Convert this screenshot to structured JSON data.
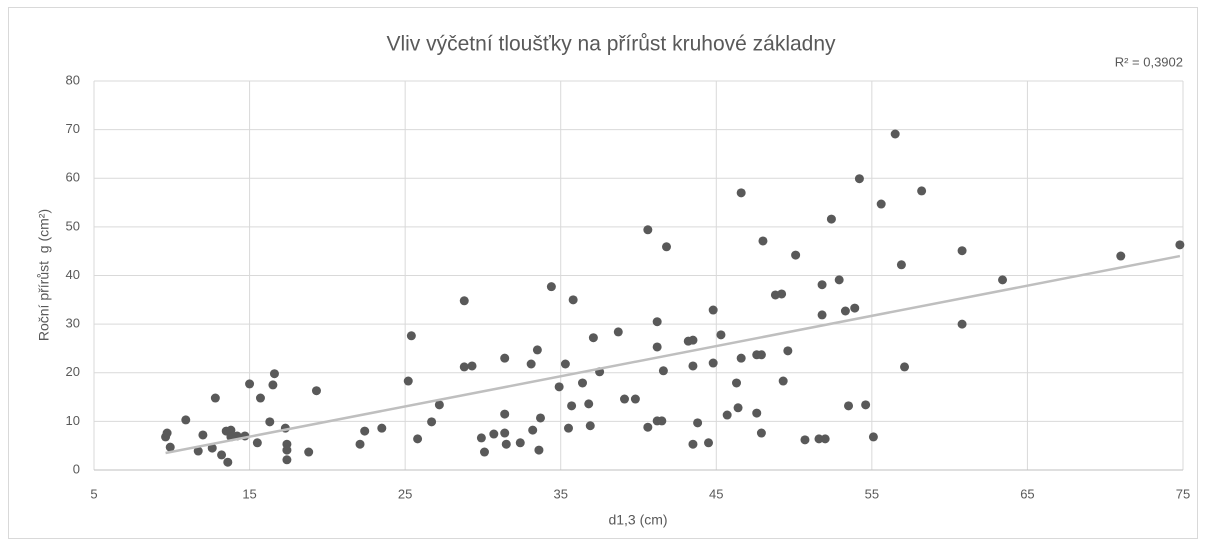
{
  "chart_data": {
    "type": "scatter",
    "title": "Vliv výčetní tloušťky na přírůst kruhové základny",
    "xlabel": "d1,3 (cm)",
    "ylabel": "Roční přírůst  g (cm²)",
    "annotation": "R² = 0,3902",
    "color": "#595959",
    "grid": true,
    "xlim": [
      5,
      75
    ],
    "xticks": [
      5,
      15,
      25,
      35,
      45,
      55,
      65,
      75
    ],
    "ylim": [
      0,
      80
    ],
    "yticks": [
      0,
      10,
      20,
      30,
      40,
      50,
      60,
      70,
      80
    ],
    "x": [
      9.6,
      9.7,
      9.9,
      10.9,
      11.7,
      12.0,
      12.6,
      12.8,
      13.2,
      13.5,
      13.6,
      13.8,
      13.8,
      14.2,
      14.7,
      15.0,
      15.5,
      15.7,
      16.3,
      16.5,
      16.6,
      17.3,
      17.4,
      17.4,
      17.4,
      18.8,
      19.3,
      22.1,
      22.4,
      23.5,
      25.2,
      25.4,
      25.8,
      26.7,
      27.2,
      28.8,
      28.8,
      29.3,
      29.9,
      30.1,
      30.7,
      31.4,
      31.4,
      31.4,
      31.5,
      32.4,
      33.1,
      33.2,
      33.5,
      33.6,
      33.7,
      34.4,
      34.9,
      35.3,
      35.5,
      35.7,
      35.8,
      36.4,
      36.8,
      36.9,
      37.1,
      37.5,
      38.7,
      39.1,
      39.8,
      40.6,
      40.6,
      41.2,
      41.2,
      41.2,
      41.5,
      41.6,
      41.8,
      43.2,
      43.5,
      43.5,
      43.5,
      43.8,
      44.5,
      44.8,
      44.8,
      45.3,
      45.7,
      46.3,
      46.4,
      46.6,
      46.6,
      47.6,
      47.6,
      47.9,
      47.9,
      48.0,
      48.8,
      49.2,
      49.3,
      49.6,
      50.1,
      50.7,
      51.6,
      51.8,
      51.8,
      52.0,
      52.4,
      52.9,
      53.3,
      53.5,
      53.9,
      54.2,
      54.6,
      55.1,
      55.6,
      56.5,
      56.9,
      57.1,
      58.2,
      60.8,
      60.8,
      63.4,
      71.0,
      74.8
    ],
    "values": [
      6.8,
      7.6,
      4.7,
      10.3,
      3.9,
      7.2,
      4.5,
      14.8,
      3.1,
      8.0,
      1.6,
      8.2,
      6.8,
      7.0,
      7.0,
      17.7,
      5.6,
      14.8,
      9.9,
      17.5,
      19.8,
      8.6,
      5.3,
      4.1,
      2.1,
      3.7,
      16.3,
      5.3,
      8.0,
      8.6,
      18.3,
      27.6,
      6.4,
      9.9,
      13.4,
      34.8,
      21.2,
      21.4,
      6.6,
      3.7,
      7.4,
      7.6,
      11.5,
      23.0,
      5.3,
      5.6,
      21.8,
      8.2,
      24.7,
      4.1,
      10.7,
      37.7,
      17.1,
      21.8,
      8.6,
      13.2,
      35.0,
      17.9,
      13.6,
      9.1,
      27.2,
      20.2,
      28.4,
      14.6,
      14.6,
      49.4,
      8.8,
      30.5,
      25.3,
      10.1,
      10.1,
      20.4,
      45.9,
      26.5,
      26.7,
      21.4,
      5.3,
      9.7,
      5.6,
      22.0,
      32.9,
      27.8,
      11.3,
      17.9,
      12.8,
      23.0,
      57.0,
      11.7,
      23.7,
      23.7,
      7.6,
      47.1,
      36.0,
      36.2,
      18.3,
      24.5,
      44.2,
      6.2,
      6.4,
      38.1,
      31.9,
      6.4,
      51.6,
      39.1,
      32.7,
      13.2,
      33.3,
      59.9,
      13.4,
      6.8,
      54.7,
      69.1,
      42.2,
      21.2,
      57.4,
      45.1,
      30.0,
      39.1,
      44.0,
      46.3
    ],
    "trendline": {
      "x": [
        9.6,
        74.8
      ],
      "values": [
        3.5,
        44.0
      ],
      "color": "#bfbfbf"
    }
  }
}
